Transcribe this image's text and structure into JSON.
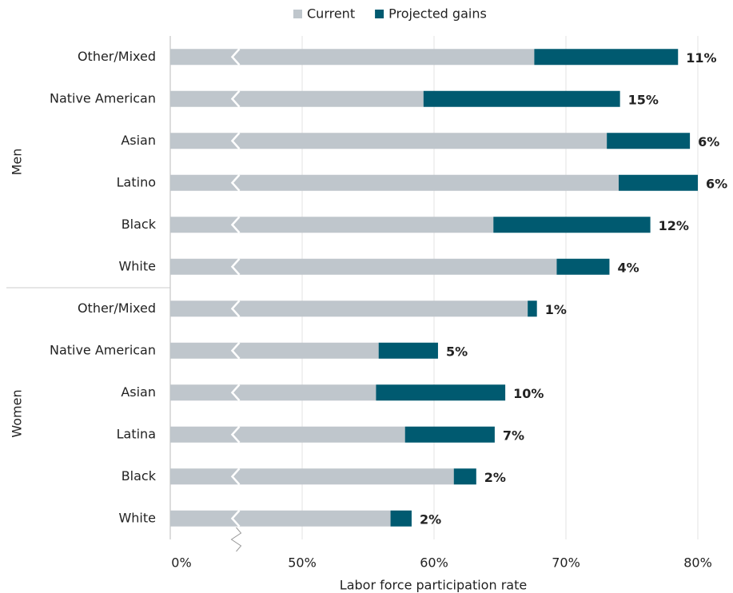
{
  "chart_data": {
    "type": "hbar-stacked",
    "x_label": "Labor force participation rate",
    "broken_axis": true,
    "groups": [
      {
        "name": "Men",
        "categories": [
          "Other/Mixed",
          "Native American",
          "Asian",
          "Latino",
          "Black",
          "White"
        ]
      },
      {
        "name": "Women",
        "categories": [
          "Other/Mixed",
          "Native American",
          "Asian",
          "Latina",
          "Black",
          "White"
        ]
      }
    ],
    "series": [
      {
        "name": "Current",
        "color": "#bfc6cc",
        "values": [
          67.6,
          59.2,
          73.1,
          74.0,
          64.5,
          69.3,
          67.1,
          55.8,
          55.6,
          57.8,
          61.5,
          56.7
        ]
      },
      {
        "name": "Projected gains",
        "color": "#005a70",
        "values": [
          10.9,
          14.9,
          6.3,
          6.0,
          11.9,
          4.0,
          0.7,
          4.5,
          9.8,
          6.8,
          1.7,
          1.6
        ],
        "value_labels": [
          "11%",
          "15%",
          "6%",
          "6%",
          "12%",
          "4%",
          "1%",
          "5%",
          "10%",
          "7%",
          "2%",
          "2%"
        ]
      }
    ],
    "xlim": [
      0,
      80
    ],
    "xticks": [
      {
        "value": 0,
        "label": "0%"
      },
      {
        "value": 50,
        "label": "50%"
      },
      {
        "value": 60,
        "label": "60%"
      },
      {
        "value": 70,
        "label": "70%"
      },
      {
        "value": 80,
        "label": "80%"
      }
    ],
    "grid": true,
    "legend": "top"
  }
}
